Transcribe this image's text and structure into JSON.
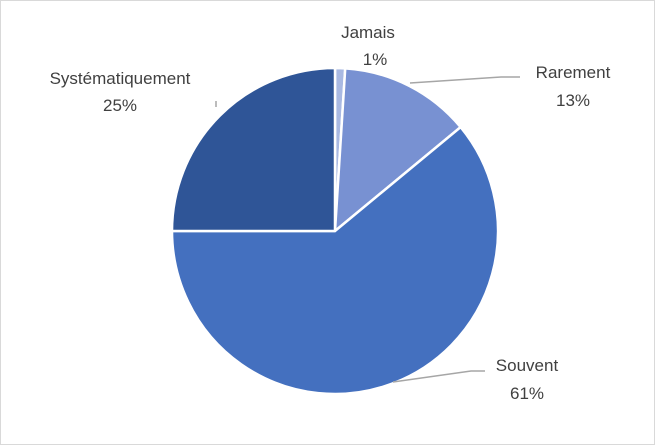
{
  "chart_data": {
    "type": "pie",
    "title": "",
    "categories": [
      "Jamais",
      "Rarement",
      "Souvent",
      "Systématiquement"
    ],
    "values": [
      1,
      13,
      61,
      25
    ],
    "value_labels": [
      "1%",
      "13%",
      "61%",
      "25%"
    ],
    "colors": [
      "#a9b9e2",
      "#7891d2",
      "#4470bf",
      "#2f5597"
    ],
    "start_angle_deg": 0,
    "direction": "clockwise",
    "legend": "none",
    "data_labels": "outside with leader lines"
  }
}
